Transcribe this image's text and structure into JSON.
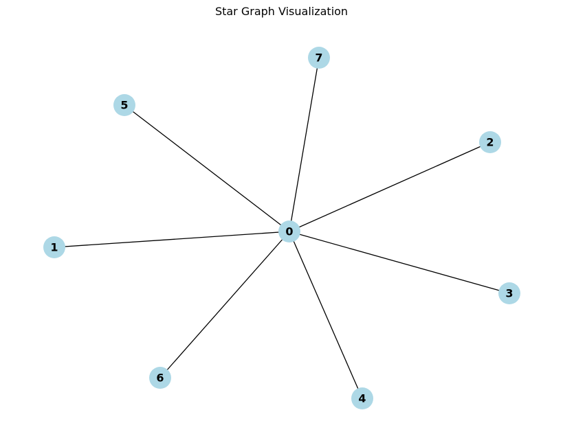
{
  "title": "Star Graph Visualization",
  "colors": {
    "node_fill": "#add8e6",
    "edge": "#000000",
    "label": "#000000"
  },
  "nodes": [
    {
      "id": "0",
      "label": "0"
    },
    {
      "id": "1",
      "label": "1"
    },
    {
      "id": "2",
      "label": "2"
    },
    {
      "id": "3",
      "label": "3"
    },
    {
      "id": "4",
      "label": "4"
    },
    {
      "id": "5",
      "label": "5"
    },
    {
      "id": "6",
      "label": "6"
    },
    {
      "id": "7",
      "label": "7"
    }
  ],
  "edges": [
    [
      "0",
      "1"
    ],
    [
      "0",
      "2"
    ],
    [
      "0",
      "3"
    ],
    [
      "0",
      "4"
    ],
    [
      "0",
      "5"
    ],
    [
      "0",
      "6"
    ],
    [
      "0",
      "7"
    ]
  ]
}
